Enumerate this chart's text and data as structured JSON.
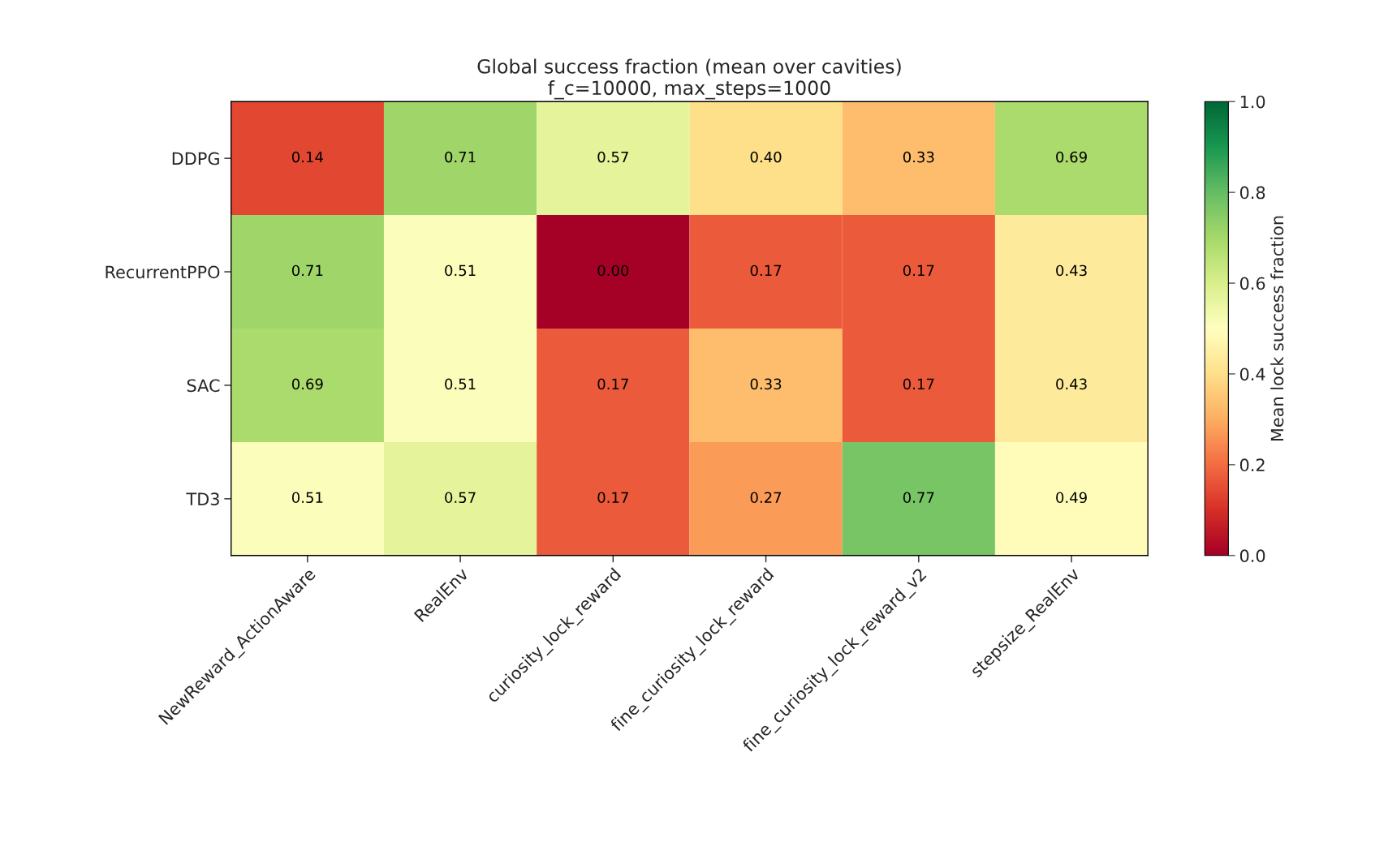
{
  "chart_data": {
    "type": "heatmap",
    "title": "Global success fraction (mean over cavities)\nf_c=10000, max_steps=1000",
    "categories": [
      "NewReward_ActionAware",
      "RealEnv",
      "curiosity_lock_reward",
      "fine_curiosity_lock_reward",
      "fine_curiosity_lock_reward_v2",
      "stepsize_RealEnv"
    ],
    "y_categories": [
      "DDPG",
      "RecurrentPPO",
      "SAC",
      "TD3"
    ],
    "cells": [
      [
        0.14,
        0.71,
        0.57,
        0.4,
        0.33,
        0.69
      ],
      [
        0.71,
        0.51,
        0.0,
        0.17,
        0.17,
        0.43
      ],
      [
        0.69,
        0.51,
        0.17,
        0.33,
        0.17,
        0.43
      ],
      [
        0.51,
        0.57,
        0.17,
        0.27,
        0.77,
        0.49
      ]
    ],
    "cell_labels": [
      [
        "0.14",
        "0.71",
        "0.57",
        "0.40",
        "0.33",
        "0.69"
      ],
      [
        "0.71",
        "0.51",
        "0.00",
        "0.17",
        "0.17",
        "0.43"
      ],
      [
        "0.69",
        "0.51",
        "0.17",
        "0.33",
        "0.17",
        "0.43"
      ],
      [
        "0.51",
        "0.57",
        "0.17",
        "0.27",
        "0.77",
        "0.49"
      ]
    ],
    "clabel": "Mean lock success fraction",
    "clim": [
      0.0,
      1.0
    ],
    "cticks": [
      {
        "value": 0.0,
        "label": "0.0"
      },
      {
        "value": 0.2,
        "label": "0.2"
      },
      {
        "value": 0.4,
        "label": "0.4"
      },
      {
        "value": 0.6,
        "label": "0.6"
      },
      {
        "value": 0.8,
        "label": "0.8"
      },
      {
        "value": 1.0,
        "label": "1.0"
      }
    ]
  }
}
